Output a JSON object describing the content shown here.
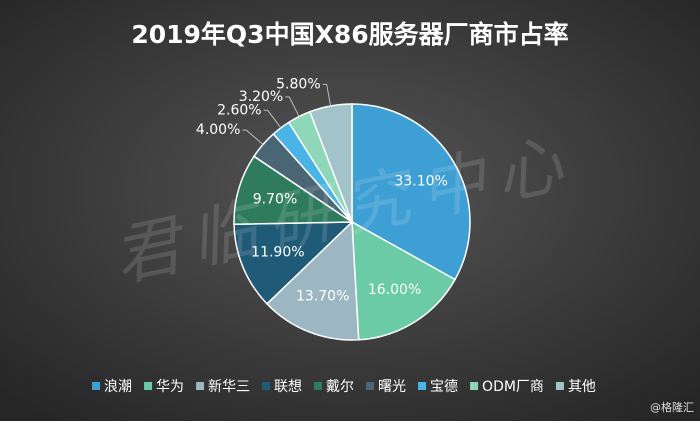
{
  "chart_data": {
    "type": "pie",
    "title": "2019年Q3中国X86服务器厂商市占率",
    "categories": [
      "浪潮",
      "华为",
      "新华三",
      "联想",
      "戴尔",
      "曙光",
      "宝德",
      "ODM厂商",
      "其他"
    ],
    "values": [
      33.1,
      16.0,
      13.7,
      11.9,
      9.7,
      4.0,
      2.6,
      3.2,
      5.8
    ],
    "value_labels": [
      "33.10%",
      "16.00%",
      "13.70%",
      "11.90%",
      "9.70%",
      "4.00%",
      "2.60%",
      "3.20%",
      "5.80%"
    ],
    "colors": [
      "#3d9fd3",
      "#6acba6",
      "#9cb6c2",
      "#1f5a76",
      "#2f7b5e",
      "#4a6675",
      "#4bb4e6",
      "#8fd7b9",
      "#a3c3cb"
    ],
    "legend": "bottom",
    "watermark": "君临研究中心",
    "source": "@格隆汇"
  }
}
